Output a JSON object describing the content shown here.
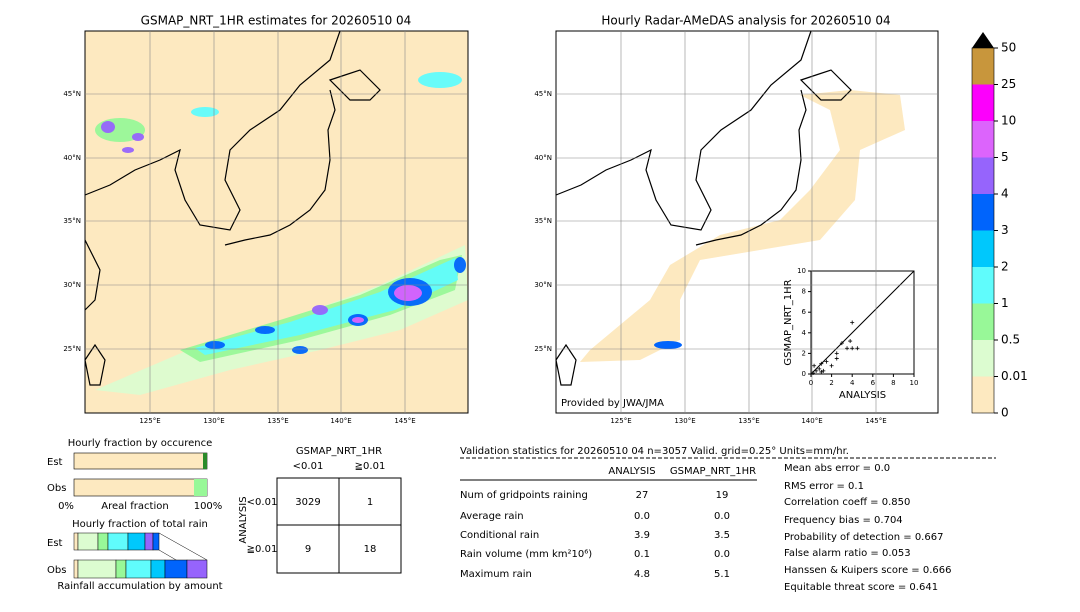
{
  "left_map": {
    "title": "GSMAP_NRT_1HR estimates for 20260510 04",
    "lat_labels": [
      "45°N",
      "40°N",
      "35°N",
      "30°N",
      "25°N"
    ],
    "lon_labels": [
      "125°E",
      "130°E",
      "135°E",
      "140°E",
      "145°E"
    ]
  },
  "right_map": {
    "title": "Hourly Radar-AMeDAS analysis for 20260510 04",
    "lat_labels": [
      "45°N",
      "40°N",
      "35°N",
      "30°N",
      "25°N"
    ],
    "lon_labels": [
      "125°E",
      "130°E",
      "135°E",
      "140°E",
      "145°E"
    ],
    "credit": "Provided by JWA/JMA"
  },
  "scatter": {
    "type": "scatter",
    "xlabel": "ANALYSIS",
    "ylabel": "GSMAP_NRT_1HR",
    "xlim": [
      0,
      10
    ],
    "ylim": [
      0,
      10
    ],
    "xticks": [
      0,
      2,
      4,
      6,
      8,
      10
    ],
    "yticks": [
      0,
      2,
      4,
      6,
      8,
      10
    ],
    "x": [
      0,
      0.2,
      0.5,
      0.8,
      1,
      1.2,
      1.5,
      2,
      2.5,
      3,
      3.5,
      3.8,
      4,
      4.5,
      4,
      2.5,
      1,
      0.3
    ],
    "y": [
      0,
      0.1,
      0.3,
      0.5,
      1,
      0.3,
      1.2,
      0.8,
      2,
      3,
      2.5,
      3.2,
      2.5,
      2.5,
      5,
      1.5,
      0.2,
      0.8
    ]
  },
  "colorbar": {
    "labels": [
      "0",
      "0.01",
      "0.5",
      "1",
      "2",
      "3",
      "4",
      "5",
      "10",
      "25",
      "50"
    ],
    "colors": [
      "#fde9c0",
      "#dcfcd0",
      "#98f898",
      "#60fcfc",
      "#00c8fc",
      "#0064fc",
      "#9664fc",
      "#dc64fc",
      "#fc00fc",
      "#c8963c"
    ]
  },
  "occurrence": {
    "title": "Hourly fraction by occurence",
    "rows": [
      "Est",
      "Obs"
    ],
    "axis_left": "0%",
    "axis_label": "Areal fraction",
    "axis_right": "100%"
  },
  "amount": {
    "title": "Hourly fraction of total rain",
    "rows": [
      "Est",
      "Obs"
    ],
    "xlabel": "Rainfall accumulation by amount"
  },
  "contingency": {
    "title": "GSMAP_NRT_1HR",
    "columns": [
      "<0.01",
      "≧0.01"
    ],
    "rows": [
      "<0.01",
      "≧0.01"
    ],
    "ylabel": "ANALYSIS",
    "cells": [
      [
        "3029",
        "1"
      ],
      [
        "9",
        "18"
      ]
    ]
  },
  "validation": {
    "header": "Validation statistics for 20260510 04  n=3057 Valid. grid=0.25° Units=mm/hr.",
    "columns": [
      "ANALYSIS",
      "GSMAP_NRT_1HR"
    ],
    "rows": [
      {
        "label": "Num of gridpoints raining",
        "values": [
          "27",
          "19"
        ]
      },
      {
        "label": "Average rain",
        "values": [
          "0.0",
          "0.0"
        ]
      },
      {
        "label": "Conditional rain",
        "values": [
          "3.9",
          "3.5"
        ]
      },
      {
        "label": "Rain volume (mm km²10⁶)",
        "values": [
          "0.1",
          "0.0"
        ]
      },
      {
        "label": "Maximum rain",
        "values": [
          "4.8",
          "5.1"
        ]
      }
    ],
    "scores": [
      "Mean abs error =    0.0",
      "RMS error =    0.1",
      "Correlation coeff =  0.850",
      "Frequency bias =  0.704",
      "Probability of detection =  0.667",
      "False alarm ratio =  0.053",
      "Hanssen & Kuipers score =  0.666",
      "Equitable threat score =  0.641"
    ]
  }
}
